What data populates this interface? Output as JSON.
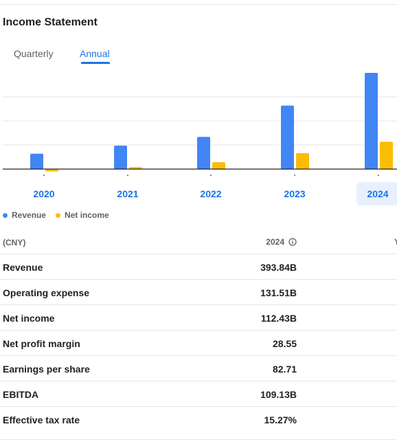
{
  "title": "Income Statement",
  "tabs": {
    "quarterly": "Quarterly",
    "annual": "Annual"
  },
  "years": [
    "2020",
    "2021",
    "2022",
    "2023",
    "2024"
  ],
  "selected_year": "2024",
  "legend": {
    "revenue": "Revenue",
    "net_income": "Net income"
  },
  "colors": {
    "revenue": "#4285f4",
    "net_income": "#fbbc04",
    "accent": "#1a73e8"
  },
  "chart_data": {
    "type": "bar",
    "categories": [
      "2020",
      "2021",
      "2022",
      "2023",
      "2024"
    ],
    "series": [
      {
        "name": "Revenue",
        "values": [
          63,
          96,
          132,
          260,
          394
        ]
      },
      {
        "name": "Net income",
        "values": [
          -10,
          8,
          28,
          65,
          112
        ]
      }
    ],
    "ylim": [
      -20,
      400
    ],
    "grid": true,
    "legend": "bottom-left"
  },
  "table": {
    "unit": "(CNY)",
    "column": "2024",
    "next_column_partial": "Y",
    "rows": [
      {
        "label": "Revenue",
        "value": "393.84B"
      },
      {
        "label": "Operating expense",
        "value": "131.51B"
      },
      {
        "label": "Net income",
        "value": "112.43B"
      },
      {
        "label": "Net profit margin",
        "value": "28.55"
      },
      {
        "label": "Earnings per share",
        "value": "82.71"
      },
      {
        "label": "EBITDA",
        "value": "109.13B"
      },
      {
        "label": "Effective tax rate",
        "value": "15.27%"
      }
    ]
  }
}
